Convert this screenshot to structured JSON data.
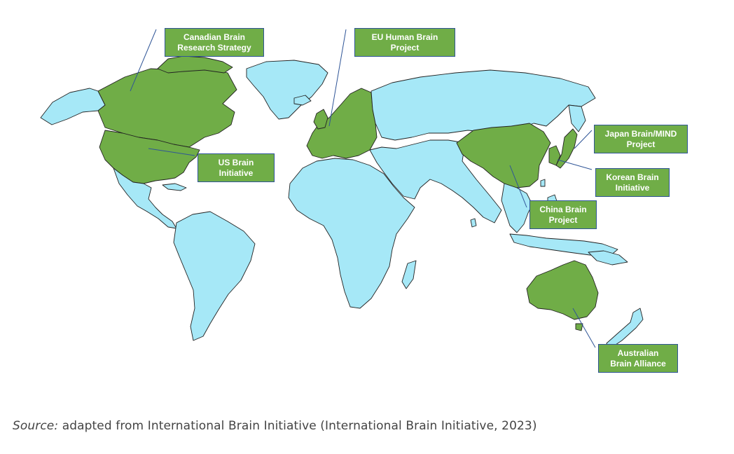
{
  "map": {
    "colors": {
      "ocean": "#ffffff",
      "other_countries": "#a6e8f7",
      "brain_initiative_countries": "#70ad47",
      "border": "#222222",
      "leader_line": "#2f5597"
    },
    "labels": [
      {
        "id": "canada",
        "line1": "Canadian Brain",
        "line2": "Research Strategy"
      },
      {
        "id": "eu",
        "line1": "EU Human Brain",
        "line2": "Project"
      },
      {
        "id": "us",
        "line1": "US Brain",
        "line2": "Initiative"
      },
      {
        "id": "japan",
        "line1": "Japan Brain/MIND",
        "line2": "Project"
      },
      {
        "id": "korea",
        "line1": "Korean Brain",
        "line2": "Initiative"
      },
      {
        "id": "china",
        "line1": "China Brain",
        "line2": "Project"
      },
      {
        "id": "australia",
        "line1": "Australian",
        "line2": "Brain Alliance"
      }
    ]
  },
  "caption": {
    "prefix": "Source:",
    "text": " adapted from International Brain Initiative (International Brain Initiative, 2023)"
  }
}
